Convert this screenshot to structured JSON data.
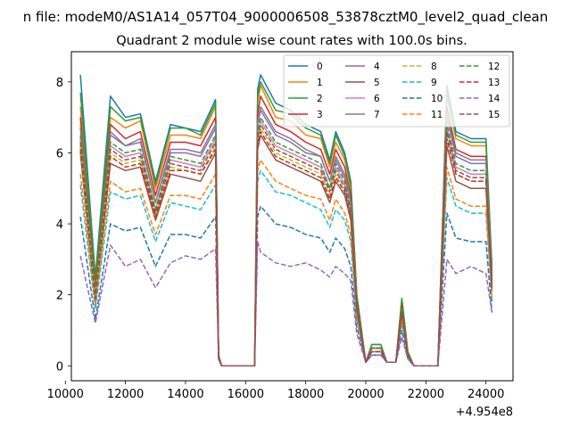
{
  "chart_data": {
    "type": "line",
    "suptitle": "n file: modeM0/AS1A14_057T04_9000006508_53878cztM0_level2_quad_clean",
    "title": "Quadrant 2 module wise count rates with 100.0s bins.",
    "xlabel": "",
    "ylabel": "",
    "x_offset_label": "+4.954e8",
    "xlim": [
      10200,
      24900
    ],
    "ylim": [
      -0.42,
      8.85
    ],
    "xticks": [
      10000,
      12000,
      14000,
      16000,
      18000,
      20000,
      22000,
      24000
    ],
    "xtick_labels": [
      "10000",
      "12000",
      "14000",
      "16000",
      "18000",
      "20000",
      "22000",
      "24000"
    ],
    "yticks": [
      0,
      2,
      4,
      6,
      8
    ],
    "ytick_labels": [
      "0",
      "2",
      "4",
      "6",
      "8"
    ],
    "grid": false,
    "legend": {
      "placement": "top-right",
      "columns": 4
    },
    "x": [
      10500,
      11000,
      11500,
      12000,
      12500,
      13000,
      13500,
      14000,
      14500,
      15000,
      15100,
      15200,
      15500,
      16000,
      16300,
      16400,
      16500,
      17000,
      17500,
      18000,
      18500,
      18800,
      19000,
      19300,
      19500,
      19700,
      20000,
      20200,
      20500,
      20700,
      21000,
      21200,
      21400,
      21600,
      22000,
      22400,
      22700,
      23000,
      23500,
      24000,
      24200
    ],
    "series": [
      {
        "name": "0",
        "color": "#1f77b4",
        "dash": "solid",
        "values": [
          8.2,
          2.5,
          7.6,
          7.0,
          7.1,
          5.2,
          6.8,
          6.7,
          6.6,
          7.5,
          0.3,
          0,
          0,
          0,
          0,
          7.8,
          8.2,
          7.4,
          7.2,
          6.8,
          6.6,
          5.8,
          6.6,
          6.0,
          5.2,
          2.0,
          0.1,
          0.6,
          0.6,
          0.1,
          0.1,
          1.9,
          0.4,
          0,
          0,
          0,
          7.9,
          6.6,
          6.4,
          6.4,
          2.8
        ]
      },
      {
        "name": "1",
        "color": "#ff7f0e",
        "dash": "solid",
        "values": [
          7.3,
          2.2,
          7.0,
          6.7,
          6.9,
          5.0,
          6.5,
          6.5,
          6.4,
          7.3,
          0.3,
          0,
          0,
          0,
          0,
          7.4,
          7.9,
          7.0,
          6.9,
          6.5,
          6.4,
          5.6,
          6.3,
          5.8,
          5.0,
          1.9,
          0.1,
          0.5,
          0.5,
          0.1,
          0.1,
          1.8,
          0.4,
          0,
          0,
          0,
          7.6,
          6.4,
          6.2,
          6.2,
          2.6
        ]
      },
      {
        "name": "2",
        "color": "#2ca02c",
        "dash": "solid",
        "values": [
          7.7,
          2.4,
          7.3,
          6.9,
          7.0,
          5.1,
          6.7,
          6.7,
          6.5,
          7.4,
          0.3,
          0,
          0,
          0,
          0,
          7.6,
          8.0,
          7.2,
          7.1,
          6.7,
          6.5,
          5.7,
          6.5,
          5.9,
          5.1,
          2.0,
          0.1,
          0.6,
          0.6,
          0.1,
          0.1,
          1.9,
          0.4,
          0,
          0,
          0,
          7.7,
          6.5,
          6.3,
          6.3,
          2.7
        ]
      },
      {
        "name": "3",
        "color": "#d62728",
        "dash": "solid",
        "values": [
          7.0,
          2.1,
          6.8,
          6.4,
          6.6,
          4.8,
          6.3,
          6.3,
          6.2,
          7.0,
          0.3,
          0,
          0,
          0,
          0,
          7.1,
          7.6,
          6.8,
          6.6,
          6.3,
          6.1,
          5.4,
          6.1,
          5.6,
          4.8,
          1.8,
          0.1,
          0.5,
          0.5,
          0.1,
          0.1,
          1.7,
          0.3,
          0,
          0,
          0,
          7.3,
          6.1,
          5.9,
          5.9,
          2.5
        ]
      },
      {
        "name": "4",
        "color": "#9467bd",
        "dash": "solid",
        "values": [
          6.7,
          2.0,
          6.5,
          6.2,
          6.3,
          4.6,
          6.0,
          6.0,
          5.9,
          6.7,
          0.3,
          0,
          0,
          0,
          0,
          6.8,
          7.2,
          6.5,
          6.3,
          6.0,
          5.9,
          5.2,
          5.8,
          5.3,
          4.6,
          1.7,
          0.1,
          0.5,
          0.5,
          0.1,
          0.1,
          1.6,
          0.3,
          0,
          0,
          0,
          7.0,
          5.9,
          5.7,
          5.7,
          2.4
        ]
      },
      {
        "name": "5",
        "color": "#8c564b",
        "dash": "solid",
        "values": [
          6.0,
          1.8,
          5.7,
          5.5,
          5.6,
          4.1,
          5.4,
          5.3,
          5.2,
          6.0,
          0.2,
          0,
          0,
          0,
          0,
          6.1,
          6.5,
          5.8,
          5.6,
          5.4,
          5.2,
          4.6,
          5.2,
          4.8,
          4.1,
          1.5,
          0.1,
          0.4,
          0.4,
          0.1,
          0.1,
          1.4,
          0.3,
          0,
          0,
          0,
          6.2,
          5.2,
          5.0,
          5.0,
          2.1
        ]
      },
      {
        "name": "6",
        "color": "#e377c2",
        "dash": "solid",
        "values": [
          6.4,
          1.9,
          6.2,
          5.9,
          6.0,
          4.4,
          5.8,
          5.7,
          5.6,
          6.4,
          0.3,
          0,
          0,
          0,
          0,
          6.5,
          6.9,
          6.2,
          6.0,
          5.8,
          5.6,
          5.0,
          5.6,
          5.1,
          4.4,
          1.6,
          0.1,
          0.5,
          0.5,
          0.1,
          0.1,
          1.5,
          0.3,
          0,
          0,
          0,
          6.7,
          5.6,
          5.4,
          5.4,
          2.3
        ]
      },
      {
        "name": "7",
        "color": "#7f7f7f",
        "dash": "solid",
        "values": [
          6.8,
          2.0,
          6.6,
          6.2,
          6.4,
          4.6,
          6.1,
          6.1,
          6.0,
          6.8,
          0.3,
          0,
          0,
          0,
          0,
          6.9,
          7.3,
          6.6,
          6.4,
          6.1,
          5.9,
          5.2,
          5.9,
          5.4,
          4.6,
          1.7,
          0.1,
          0.5,
          0.5,
          0.1,
          0.1,
          1.6,
          0.3,
          0,
          0,
          0,
          7.1,
          6.0,
          5.8,
          5.8,
          2.4
        ]
      },
      {
        "name": "8",
        "color": "#bcbd22",
        "dash": "dashed",
        "values": [
          6.2,
          1.9,
          6.0,
          5.7,
          5.8,
          4.2,
          5.6,
          5.5,
          5.4,
          6.2,
          0.2,
          0,
          0,
          0,
          0,
          6.3,
          6.7,
          6.0,
          5.8,
          5.6,
          5.4,
          4.8,
          5.4,
          4.9,
          4.2,
          1.6,
          0.1,
          0.4,
          0.4,
          0.1,
          0.1,
          1.5,
          0.3,
          0,
          0,
          0,
          6.4,
          5.4,
          5.2,
          5.2,
          2.2
        ]
      },
      {
        "name": "9",
        "color": "#17becf",
        "dash": "dashed",
        "values": [
          5.1,
          1.6,
          4.9,
          4.7,
          4.8,
          3.5,
          4.6,
          4.5,
          4.4,
          5.1,
          0.2,
          0,
          0,
          0,
          0,
          5.2,
          5.5,
          4.9,
          4.8,
          4.6,
          4.4,
          3.9,
          4.4,
          4.1,
          3.5,
          1.3,
          0.1,
          0.4,
          0.4,
          0.1,
          0.1,
          1.2,
          0.2,
          0,
          0,
          0,
          5.3,
          4.5,
          4.3,
          4.3,
          1.8
        ]
      },
      {
        "name": "10",
        "color": "#1f77b4",
        "dash": "dashed",
        "values": [
          4.2,
          1.3,
          4.0,
          3.8,
          3.9,
          2.8,
          3.7,
          3.7,
          3.6,
          4.2,
          0.2,
          0,
          0,
          0,
          0,
          4.2,
          4.5,
          4.0,
          3.9,
          3.7,
          3.6,
          3.2,
          3.6,
          3.3,
          2.8,
          1.1,
          0.1,
          0.3,
          0.3,
          0.1,
          0.1,
          1.0,
          0.2,
          0,
          0,
          0,
          4.3,
          3.6,
          3.5,
          3.5,
          1.5
        ]
      },
      {
        "name": "11",
        "color": "#ff7f0e",
        "dash": "dashed",
        "values": [
          5.4,
          1.7,
          5.2,
          4.9,
          5.0,
          3.7,
          4.8,
          4.8,
          4.7,
          5.4,
          0.2,
          0,
          0,
          0,
          0,
          5.5,
          5.8,
          5.2,
          5.0,
          4.8,
          4.7,
          4.1,
          4.7,
          4.3,
          3.7,
          1.4,
          0.1,
          0.4,
          0.4,
          0.1,
          0.1,
          1.3,
          0.3,
          0,
          0,
          0,
          5.6,
          4.7,
          4.5,
          4.5,
          1.9
        ]
      },
      {
        "name": "12",
        "color": "#2ca02c",
        "dash": "dashed",
        "values": [
          6.5,
          2.0,
          6.3,
          6.0,
          6.1,
          4.4,
          5.9,
          5.8,
          5.7,
          6.5,
          0.3,
          0,
          0,
          0,
          0,
          6.6,
          7.0,
          6.3,
          6.1,
          5.9,
          5.7,
          5.0,
          5.7,
          5.2,
          4.4,
          1.7,
          0.1,
          0.5,
          0.5,
          0.1,
          0.1,
          1.6,
          0.3,
          0,
          0,
          0,
          6.8,
          5.7,
          5.5,
          5.5,
          2.3
        ]
      },
      {
        "name": "13",
        "color": "#d62728",
        "dash": "dashed",
        "values": [
          6.1,
          1.9,
          5.9,
          5.6,
          5.7,
          4.2,
          5.5,
          5.5,
          5.4,
          6.1,
          0.2,
          0,
          0,
          0,
          0,
          6.2,
          6.6,
          5.9,
          5.7,
          5.5,
          5.3,
          4.7,
          5.3,
          4.9,
          4.2,
          1.6,
          0.1,
          0.4,
          0.4,
          0.1,
          0.1,
          1.5,
          0.3,
          0,
          0,
          0,
          6.4,
          5.4,
          5.2,
          5.2,
          2.2
        ]
      },
      {
        "name": "14",
        "color": "#9467bd",
        "dash": "dashed",
        "values": [
          3.1,
          1.2,
          3.4,
          2.8,
          3.0,
          2.2,
          2.9,
          3.1,
          3.0,
          3.3,
          0.2,
          0,
          0,
          0,
          0,
          3.5,
          3.2,
          2.9,
          2.8,
          2.9,
          2.7,
          2.5,
          2.8,
          2.6,
          2.4,
          0.9,
          0.1,
          0.3,
          0.3,
          0.1,
          0.1,
          0.8,
          0.2,
          0,
          0,
          0,
          3.0,
          2.6,
          2.8,
          2.6,
          1.5
        ]
      },
      {
        "name": "15",
        "color": "#8c564b",
        "dash": "dashed",
        "values": [
          6.3,
          1.9,
          6.1,
          5.8,
          5.9,
          4.3,
          5.7,
          5.6,
          5.5,
          6.3,
          0.2,
          0,
          0,
          0,
          0,
          6.4,
          6.8,
          6.1,
          5.9,
          5.7,
          5.5,
          4.9,
          5.5,
          5.0,
          4.3,
          1.6,
          0.1,
          0.5,
          0.5,
          0.1,
          0.1,
          1.5,
          0.3,
          0,
          0,
          0,
          6.6,
          5.5,
          5.3,
          5.3,
          2.2
        ]
      }
    ]
  }
}
